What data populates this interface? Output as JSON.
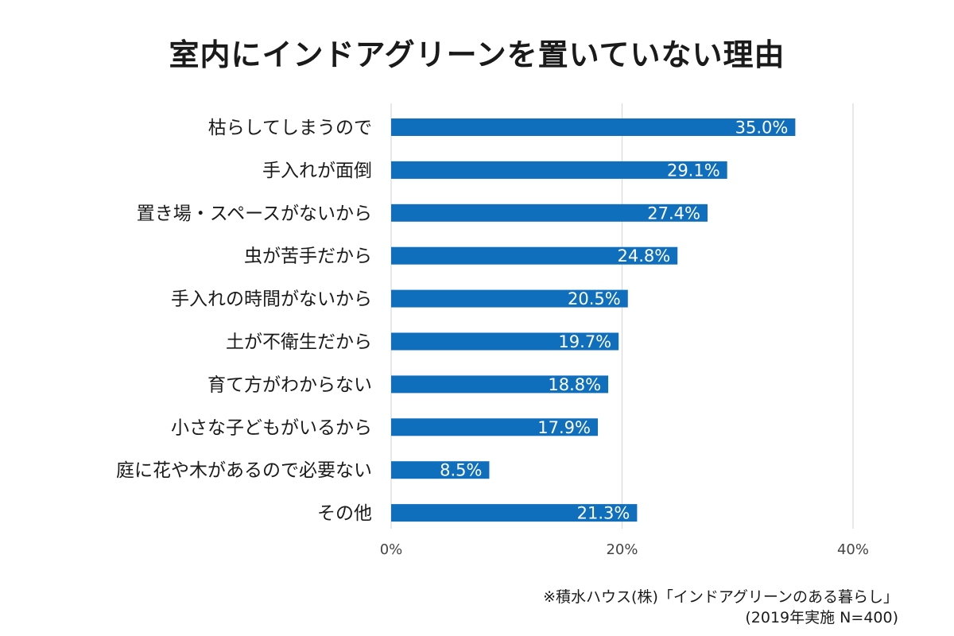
{
  "chart_data": {
    "type": "bar",
    "orientation": "horizontal",
    "title": "室内にインドアグリーンを置いていない理由",
    "categories": [
      "枯らしてしまうので",
      "手入れが面倒",
      "置き場・スペースがないから",
      "虫が苦手だから",
      "手入れの時間がないから",
      "土が不衛生だから",
      "育て方がわからない",
      "小さな子どもがいるから",
      "庭に花や木があるので必要ない",
      "その他"
    ],
    "values": [
      35.0,
      29.1,
      27.4,
      24.8,
      20.5,
      19.7,
      18.8,
      17.9,
      8.5,
      21.3
    ],
    "data_labels": [
      "35.0%",
      "29.1%",
      "27.4%",
      "24.8%",
      "20.5%",
      "19.7%",
      "18.8%",
      "17.9%",
      "8.5%",
      "21.3%"
    ],
    "xlim": [
      0,
      40
    ],
    "x_ticks": [
      0,
      20,
      40
    ],
    "x_tick_labels": [
      "0%",
      "20%",
      "40%"
    ],
    "grid": true,
    "bar_color": "#0f6fbd",
    "grid_color": "#d9d9d9"
  },
  "source": {
    "line1": "※積水ハウス(株)「インドアグリーンのある暮らし」",
    "line2": "(2019年実施 N=400)"
  }
}
